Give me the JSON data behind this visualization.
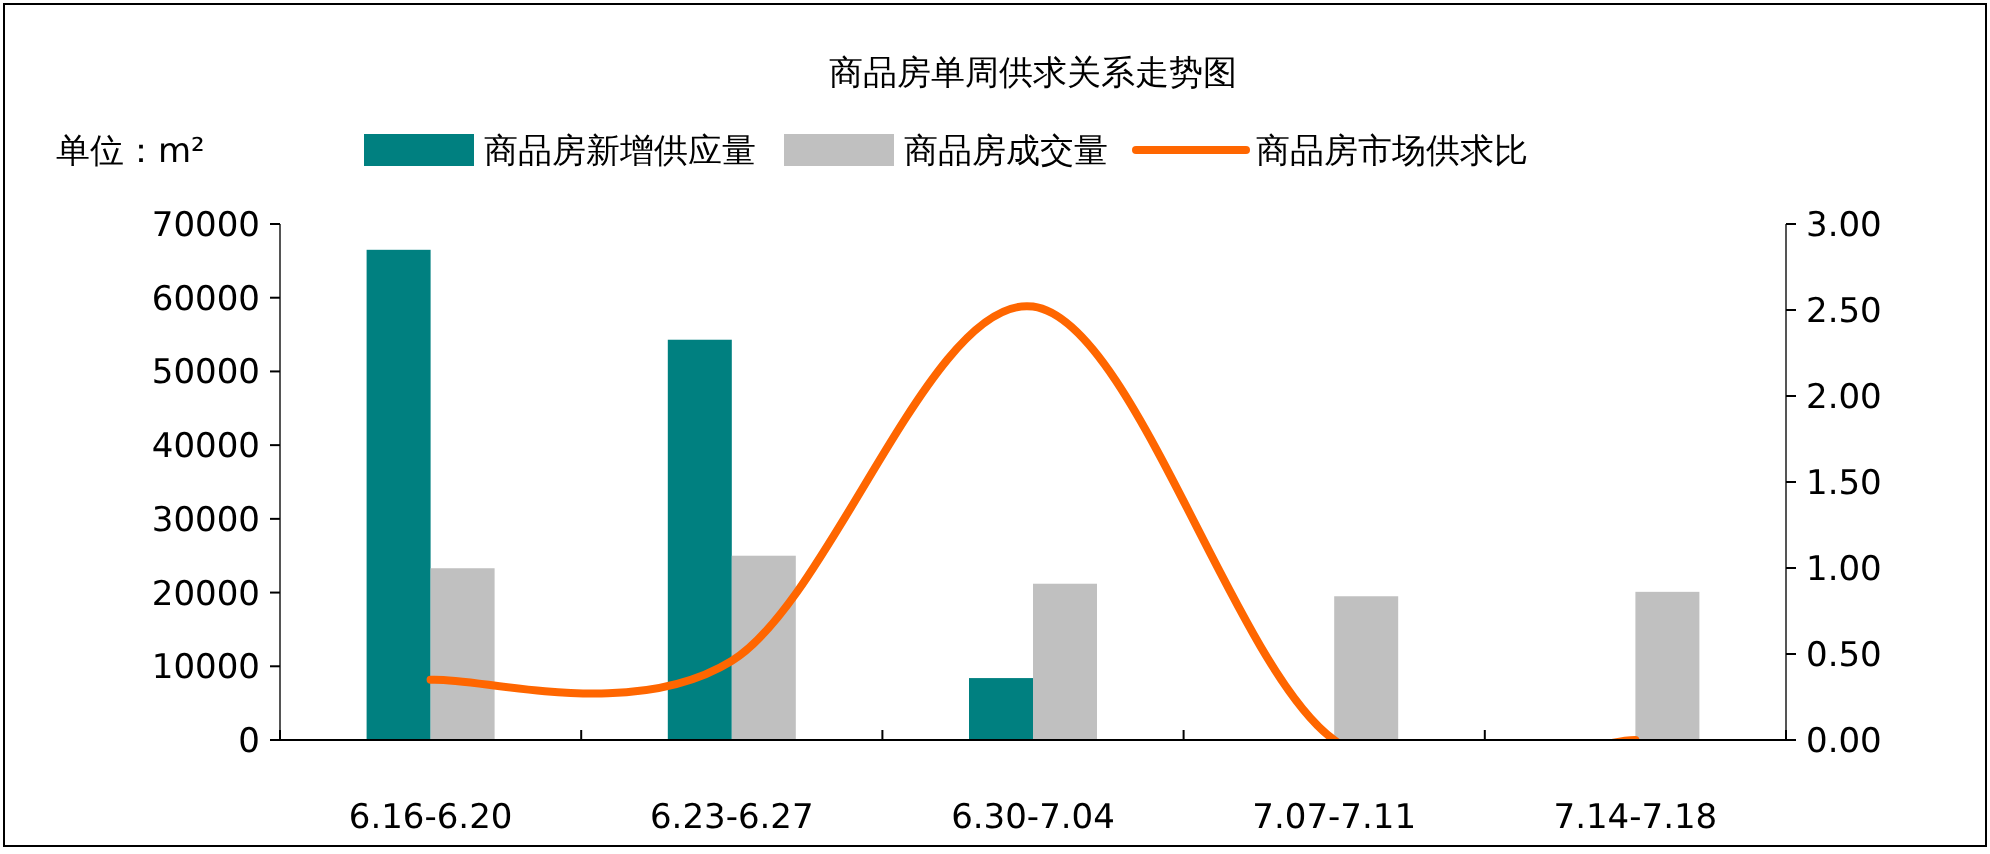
{
  "chart_data": {
    "type": "bar",
    "title": "商品房单周供求关系走势图",
    "ylabel": "单位：m²",
    "categories": [
      "6.16-6.20",
      "6.23-6.27",
      "6.30-7.04",
      "7.07-7.11",
      "7.14-7.18"
    ],
    "series": [
      {
        "name": "商品房新增供应量",
        "color": "#008080",
        "values": [
          66500,
          54300,
          8400,
          0,
          0
        ]
      },
      {
        "name": "商品房成交量",
        "color": "#c0c0c0",
        "values": [
          23300,
          25000,
          21200,
          19500,
          20100
        ]
      },
      {
        "name": "商品房市场供求比",
        "type": "line",
        "axis": "y2",
        "color": "#ff6600",
        "values": [
          0.35,
          0.46,
          2.52,
          0,
          0
        ]
      }
    ],
    "ylim": [
      0,
      70000
    ],
    "yticks": [
      0,
      10000,
      20000,
      30000,
      40000,
      50000,
      60000,
      70000
    ],
    "y2lim": [
      0,
      3
    ],
    "y2ticks": [
      {
        "value": 0,
        "label": "0.00"
      },
      {
        "value": 0.5,
        "label": "0.50"
      },
      {
        "value": 1,
        "label": "1.00"
      },
      {
        "value": 1.5,
        "label": "1.50"
      },
      {
        "value": 2,
        "label": "2.00"
      },
      {
        "value": 2.5,
        "label": "2.50"
      },
      {
        "value": 3,
        "label": "3.00"
      }
    ],
    "legend": "top",
    "grid": false
  }
}
